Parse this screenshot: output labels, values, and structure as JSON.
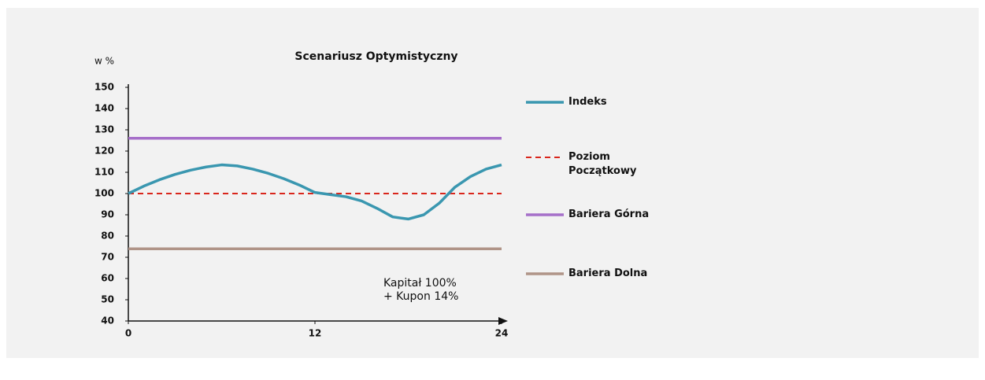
{
  "chart_data": {
    "type": "line",
    "title": "Scenariusz Optymistyczny",
    "y_label": "w %",
    "annotation": [
      "Kapitał 100%",
      "+ Kupon 14%"
    ],
    "xlim": [
      0,
      24
    ],
    "xticks": [
      0,
      12,
      24
    ],
    "ylim": [
      40,
      150
    ],
    "yticks": [
      40,
      50,
      60,
      70,
      80,
      90,
      100,
      110,
      120,
      130,
      140,
      150
    ],
    "series": [
      {
        "name": "Indeks",
        "color": "#3a97b0",
        "dash": false,
        "x": [
          0,
          1,
          2,
          3,
          4,
          5,
          6,
          7,
          8,
          9,
          10,
          11,
          12,
          13,
          14,
          15,
          16,
          17,
          18,
          19,
          20,
          21,
          22,
          23,
          24
        ],
        "values": [
          100,
          103.5,
          106.5,
          109,
          111,
          112.5,
          113.5,
          113,
          111.5,
          109.5,
          107,
          104,
          100.5,
          99.5,
          98.5,
          96.5,
          93,
          89,
          88,
          90,
          95.5,
          103,
          108,
          111.5,
          113.5
        ]
      },
      {
        "name": "Poziom Początkowy",
        "color": "#d9261c",
        "dash": true,
        "x": [
          0,
          24
        ],
        "values": [
          100,
          100
        ]
      },
      {
        "name": "Bariera Górna",
        "color": "#a66fc9",
        "dash": false,
        "x": [
          0,
          24
        ],
        "values": [
          126,
          126
        ]
      },
      {
        "name": "Bariera Dolna",
        "color": "#b09488",
        "dash": false,
        "x": [
          0,
          24
        ],
        "values": [
          74,
          74
        ]
      }
    ]
  }
}
